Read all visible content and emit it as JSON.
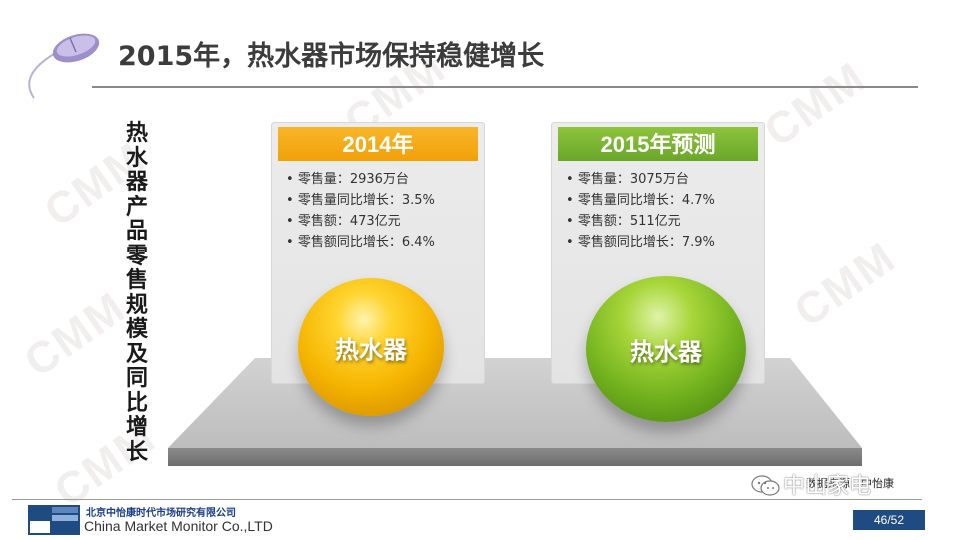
{
  "slide": {
    "title": "2015年，热水器市场保持稳健增长",
    "vertical_label": "热水器产品零售规模及同比增长",
    "watermark": "CMM"
  },
  "panels": [
    {
      "header": "2014年",
      "color": "#f5a80f",
      "bullets": [
        "零售量：2936万台",
        "零售量同比增长：3.5%",
        "零售额：473亿元",
        "零售额同比增长：6.4%"
      ],
      "ball_label": "热水器"
    },
    {
      "header": "2015年预测",
      "color": "#79b530",
      "bullets": [
        "零售量：3075万台",
        "零售量同比增长：4.7%",
        "零售额：511亿元",
        "零售额同比增长：7.9%"
      ],
      "ball_label": "热水器"
    }
  ],
  "footer": {
    "source": "数据来源：中怡康",
    "wechat_overlay": "中山家电",
    "company_cn": "北京中怡康时代市场研究有限公司",
    "company_en": "China Market Monitor Co.,LTD",
    "page": "46/52"
  }
}
